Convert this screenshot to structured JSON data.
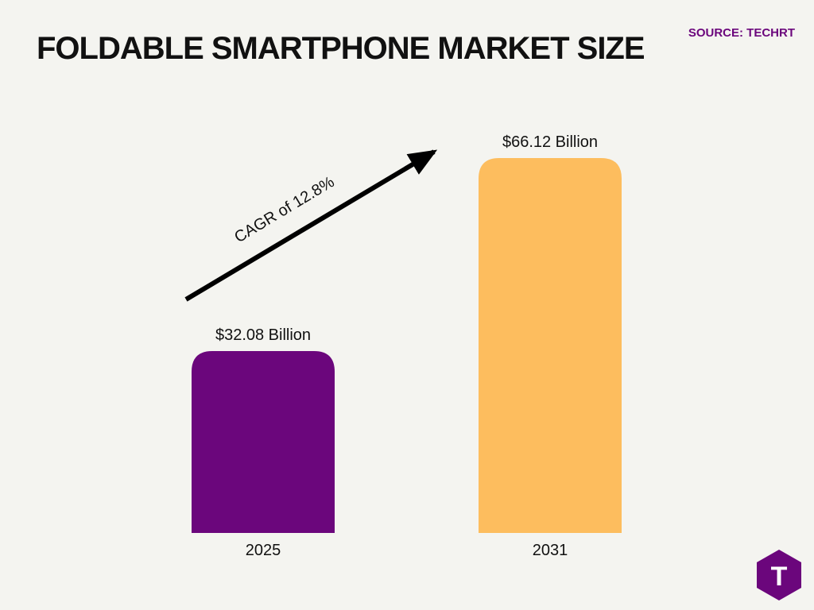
{
  "header": {
    "title": "FOLDABLE SMARTPHONE MARKET SIZE",
    "source": "SOURCE: TECHRT"
  },
  "annotation": {
    "cagr_label": "CAGR of 12.8%"
  },
  "logo": {
    "icon": "techrt-logo-icon",
    "letter": "T"
  },
  "colors": {
    "background": "#f4f4f0",
    "accent": "#6b067c",
    "bar_2025": "#6b067c",
    "bar_2031": "#fdbd5e",
    "text": "#111111"
  },
  "chart_data": {
    "type": "bar",
    "categories": [
      "2025",
      "2031"
    ],
    "values": [
      32.08,
      66.12
    ],
    "value_labels": [
      "$32.08 Billion",
      "$66.12 Billion"
    ],
    "title": "FOLDABLE SMARTPHONE MARKET SIZE",
    "xlabel": "",
    "ylabel": "",
    "ylim": [
      0,
      66.12
    ],
    "grid": false,
    "colors": [
      "#6b067c",
      "#fdbd5e"
    ]
  }
}
